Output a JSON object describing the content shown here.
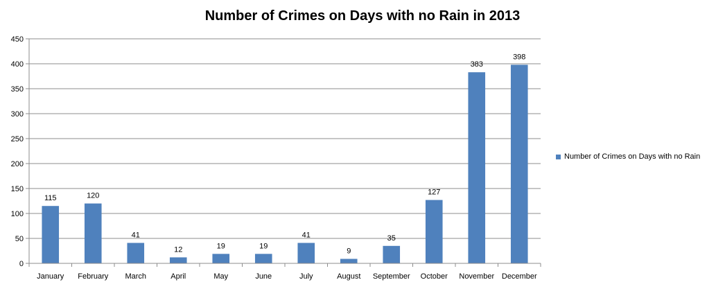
{
  "chart_data": {
    "type": "bar",
    "title": "Number of Crimes on Days with no Rain in 2013",
    "categories": [
      "January",
      "February",
      "March",
      "April",
      "May",
      "June",
      "July",
      "August",
      "September",
      "October",
      "November",
      "December"
    ],
    "series": [
      {
        "name": "Number of Crimes on Days with no Rain",
        "values": [
          115,
          120,
          41,
          12,
          19,
          19,
          41,
          9,
          35,
          127,
          383,
          398
        ]
      }
    ],
    "ylim": [
      0,
      450
    ],
    "yticks": [
      0,
      50,
      100,
      150,
      200,
      250,
      300,
      350,
      400,
      450
    ],
    "grid": true,
    "data_labels": true,
    "legend_position": "right",
    "bar_color": "#4F81BD",
    "grid_color": "#8C8C8C"
  }
}
